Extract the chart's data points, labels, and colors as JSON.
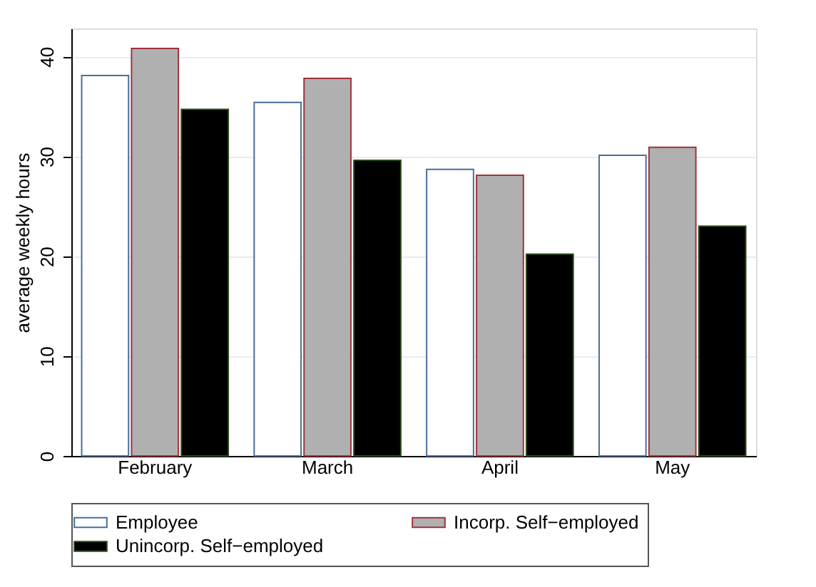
{
  "chart_data": {
    "type": "bar",
    "ylabel": "average weekly hours",
    "categories": [
      "February",
      "March",
      "April",
      "May"
    ],
    "series": [
      {
        "name": "Employee",
        "color": "#ffffff",
        "values": [
          38.1,
          35.4,
          28.7,
          30.1
        ]
      },
      {
        "name": "Incorp. Self−employed",
        "color": "#b0b0b0",
        "values": [
          40.8,
          37.8,
          28.1,
          30.9
        ]
      },
      {
        "name": "Unincorp. Self−employed",
        "color": "#000000",
        "values": [
          34.7,
          29.6,
          20.2,
          23.0
        ]
      }
    ],
    "ylim": [
      0,
      42.8
    ],
    "yticks": [
      0,
      10,
      20,
      30,
      40
    ],
    "grid": "y",
    "legend": "bottom"
  }
}
